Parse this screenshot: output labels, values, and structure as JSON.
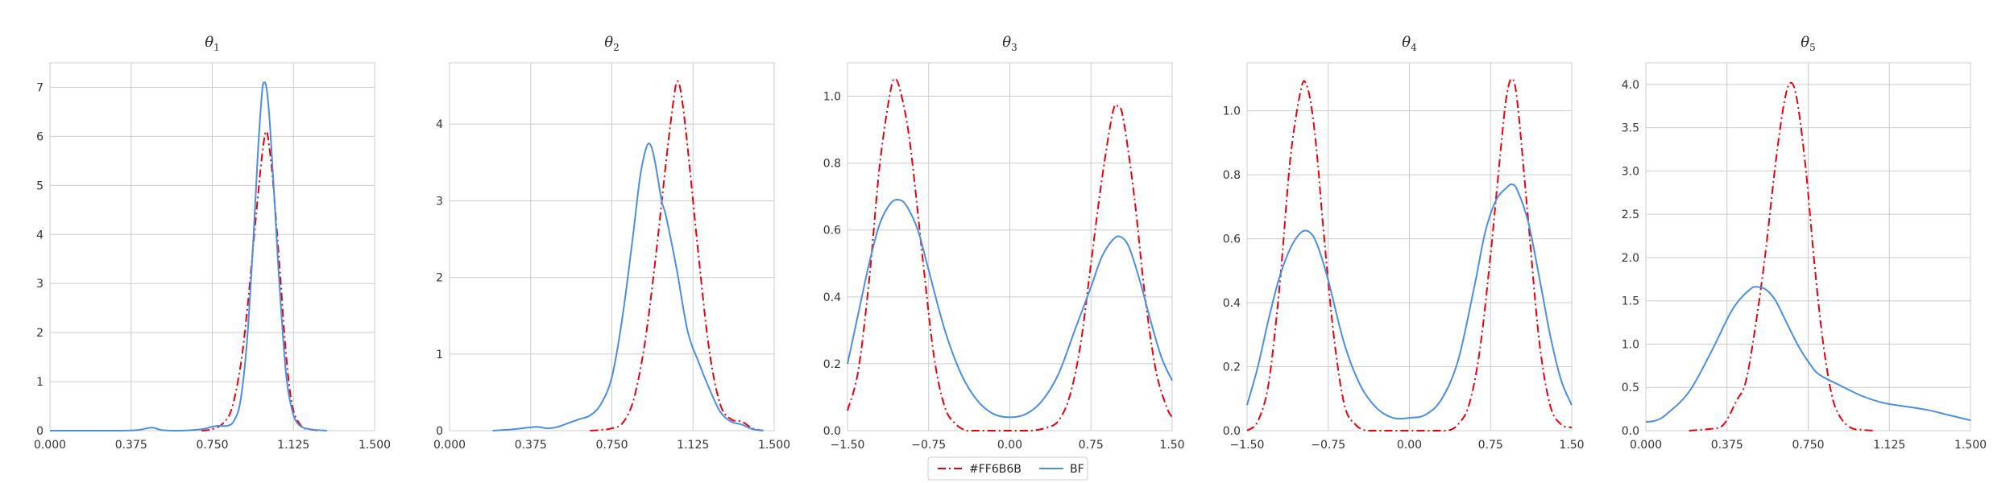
{
  "chart_data": [
    {
      "type": "line",
      "title": "θ1",
      "title_sym": "θ",
      "title_sub": "1",
      "xlim": [
        0.0,
        1.5
      ],
      "ylim": [
        0,
        7.5
      ],
      "xticks": [
        "0.000",
        "0.375",
        "0.750",
        "1.125",
        "1.500"
      ],
      "yticks": [
        "0",
        "1",
        "2",
        "3",
        "4",
        "5",
        "6",
        "7"
      ],
      "grid": true,
      "series": [
        {
          "name": "#FF6B6B",
          "x": [
            0.7,
            0.75,
            0.8,
            0.84,
            0.88,
            0.91,
            0.94,
            0.97,
            0.99,
            1.0,
            1.01,
            1.03,
            1.06,
            1.09,
            1.12,
            1.16,
            1.2,
            1.25
          ],
          "y": [
            0.0,
            0.03,
            0.15,
            0.45,
            1.3,
            2.4,
            3.8,
            5.2,
            5.95,
            6.1,
            5.9,
            5.1,
            3.4,
            1.6,
            0.5,
            0.1,
            0.03,
            0.0
          ]
        },
        {
          "name": "BF",
          "x": [
            0.0,
            0.3,
            0.4,
            0.47,
            0.52,
            0.6,
            0.7,
            0.75,
            0.78,
            0.82,
            0.85,
            0.88,
            0.91,
            0.94,
            0.96,
            0.98,
            0.99,
            1.0,
            1.01,
            1.02,
            1.04,
            1.06,
            1.09,
            1.12,
            1.15,
            1.2,
            1.28
          ],
          "y": [
            0.0,
            0.0,
            0.01,
            0.06,
            0.01,
            0.0,
            0.03,
            0.08,
            0.1,
            0.1,
            0.2,
            0.6,
            1.8,
            3.9,
            5.6,
            6.9,
            7.1,
            7.0,
            6.6,
            6.0,
            4.5,
            3.0,
            1.2,
            0.4,
            0.12,
            0.03,
            0.0
          ]
        }
      ]
    },
    {
      "type": "line",
      "title": "θ2",
      "title_sym": "θ",
      "title_sub": "2",
      "xlim": [
        0.0,
        1.5
      ],
      "ylim": [
        0,
        4.8
      ],
      "xticks": [
        "0.000",
        "0.375",
        "0.750",
        "1.125",
        "1.500"
      ],
      "yticks": [
        "0",
        "1",
        "2",
        "3",
        "4"
      ],
      "grid": true,
      "series": [
        {
          "name": "#FF6B6B",
          "x": [
            0.65,
            0.7,
            0.75,
            0.8,
            0.85,
            0.9,
            0.95,
            1.0,
            1.03,
            1.05,
            1.07,
            1.1,
            1.15,
            1.2,
            1.25,
            1.3,
            1.35,
            1.4,
            1.45
          ],
          "y": [
            0.0,
            0.01,
            0.03,
            0.1,
            0.4,
            1.1,
            2.2,
            3.5,
            4.2,
            4.55,
            4.4,
            3.7,
            2.3,
            1.05,
            0.35,
            0.15,
            0.12,
            0.03,
            0.0
          ]
        },
        {
          "name": "BF",
          "x": [
            0.2,
            0.3,
            0.4,
            0.45,
            0.5,
            0.55,
            0.6,
            0.65,
            0.7,
            0.75,
            0.8,
            0.85,
            0.88,
            0.91,
            0.93,
            0.95,
            0.98,
            1.0,
            1.05,
            1.1,
            1.15,
            1.2,
            1.25,
            1.3,
            1.35,
            1.4,
            1.45
          ],
          "y": [
            0.0,
            0.02,
            0.05,
            0.03,
            0.05,
            0.1,
            0.15,
            0.2,
            0.35,
            0.7,
            1.5,
            2.6,
            3.3,
            3.7,
            3.72,
            3.5,
            3.0,
            2.8,
            2.1,
            1.3,
            0.9,
            0.55,
            0.25,
            0.12,
            0.08,
            0.02,
            0.0
          ]
        }
      ]
    },
    {
      "type": "line",
      "title": "θ3",
      "title_sym": "θ",
      "title_sub": "3",
      "xlim": [
        -1.5,
        1.5
      ],
      "ylim": [
        0,
        1.1
      ],
      "xticks": [
        "−1.50",
        "−0.75",
        "0.00",
        "0.75",
        "1.50"
      ],
      "yticks": [
        "0.0",
        "0.2",
        "0.4",
        "0.6",
        "0.8",
        "1.0"
      ],
      "grid": true,
      "series": [
        {
          "name": "#FF6B6B",
          "x": [
            -1.5,
            -1.4,
            -1.3,
            -1.2,
            -1.1,
            -1.05,
            -1.0,
            -0.95,
            -0.9,
            -0.8,
            -0.7,
            -0.6,
            -0.5,
            -0.4,
            -0.3,
            -0.2,
            0.0,
            0.2,
            0.35,
            0.45,
            0.55,
            0.65,
            0.75,
            0.85,
            0.95,
            1.0,
            1.05,
            1.15,
            1.25,
            1.35,
            1.45,
            1.5
          ],
          "y": [
            0.06,
            0.18,
            0.45,
            0.8,
            1.02,
            1.05,
            1.0,
            0.92,
            0.8,
            0.5,
            0.22,
            0.07,
            0.02,
            0.0,
            0.0,
            0.0,
            0.0,
            0.0,
            0.01,
            0.03,
            0.1,
            0.25,
            0.5,
            0.75,
            0.95,
            0.97,
            0.93,
            0.7,
            0.4,
            0.18,
            0.07,
            0.04
          ]
        },
        {
          "name": "BF",
          "x": [
            -1.5,
            -1.4,
            -1.3,
            -1.2,
            -1.1,
            -1.02,
            -0.95,
            -0.85,
            -0.75,
            -0.6,
            -0.45,
            -0.3,
            -0.15,
            0.0,
            0.15,
            0.3,
            0.45,
            0.6,
            0.75,
            0.85,
            0.95,
            1.02,
            1.1,
            1.2,
            1.3,
            1.4,
            1.5
          ],
          "y": [
            0.2,
            0.35,
            0.5,
            0.62,
            0.68,
            0.69,
            0.67,
            0.6,
            0.48,
            0.3,
            0.17,
            0.09,
            0.05,
            0.04,
            0.05,
            0.09,
            0.17,
            0.3,
            0.43,
            0.52,
            0.57,
            0.58,
            0.55,
            0.45,
            0.33,
            0.22,
            0.15
          ]
        }
      ]
    },
    {
      "type": "line",
      "title": "θ4",
      "title_sym": "θ",
      "title_sub": "4",
      "xlim": [
        -1.5,
        1.5
      ],
      "ylim": [
        0,
        1.15
      ],
      "xticks": [
        "−1.50",
        "−0.75",
        "0.00",
        "0.75",
        "1.50"
      ],
      "yticks": [
        "0.0",
        "0.2",
        "0.4",
        "0.6",
        "0.8",
        "1.0"
      ],
      "grid": true,
      "series": [
        {
          "name": "#FF6B6B",
          "x": [
            -1.5,
            -1.4,
            -1.3,
            -1.2,
            -1.1,
            -1.0,
            -0.95,
            -0.9,
            -0.85,
            -0.8,
            -0.7,
            -0.6,
            -0.5,
            -0.4,
            -0.3,
            -0.2,
            0.0,
            0.2,
            0.35,
            0.45,
            0.55,
            0.65,
            0.75,
            0.85,
            0.9,
            0.95,
            1.0,
            1.1,
            1.2,
            1.3,
            1.4,
            1.5
          ],
          "y": [
            0.0,
            0.03,
            0.15,
            0.45,
            0.85,
            1.07,
            1.08,
            1.0,
            0.85,
            0.65,
            0.3,
            0.08,
            0.02,
            0.0,
            0.0,
            0.0,
            0.0,
            0.0,
            0.0,
            0.02,
            0.08,
            0.25,
            0.55,
            0.9,
            1.05,
            1.1,
            1.02,
            0.65,
            0.28,
            0.08,
            0.02,
            0.01
          ]
        },
        {
          "name": "BF",
          "x": [
            -1.5,
            -1.4,
            -1.3,
            -1.2,
            -1.1,
            -1.0,
            -0.92,
            -0.85,
            -0.75,
            -0.6,
            -0.45,
            -0.3,
            -0.15,
            0.0,
            0.15,
            0.3,
            0.45,
            0.6,
            0.7,
            0.8,
            0.9,
            0.95,
            1.0,
            1.1,
            1.2,
            1.3,
            1.4,
            1.5
          ],
          "y": [
            0.08,
            0.2,
            0.35,
            0.48,
            0.57,
            0.62,
            0.62,
            0.58,
            0.47,
            0.27,
            0.14,
            0.07,
            0.04,
            0.04,
            0.05,
            0.1,
            0.22,
            0.45,
            0.62,
            0.72,
            0.76,
            0.77,
            0.75,
            0.65,
            0.48,
            0.3,
            0.16,
            0.08
          ]
        }
      ]
    },
    {
      "type": "line",
      "title": "θ5",
      "title_sym": "θ",
      "title_sub": "5",
      "xlim": [
        0.0,
        1.5
      ],
      "ylim": [
        0,
        4.25
      ],
      "xticks": [
        "0.000",
        "0.375",
        "0.750",
        "1.125",
        "1.500"
      ],
      "yticks": [
        "0.0",
        "0.5",
        "1.0",
        "1.5",
        "2.0",
        "2.5",
        "3.0",
        "3.5",
        "4.0"
      ],
      "grid": true,
      "series": [
        {
          "name": "#FF6B6B",
          "x": [
            0.2,
            0.3,
            0.35,
            0.38,
            0.42,
            0.46,
            0.5,
            0.55,
            0.6,
            0.64,
            0.67,
            0.7,
            0.74,
            0.78,
            0.82,
            0.86,
            0.9,
            0.95,
            1.0,
            1.05
          ],
          "y": [
            0.0,
            0.02,
            0.05,
            0.15,
            0.35,
            0.55,
            1.1,
            2.0,
            3.1,
            3.8,
            4.02,
            3.8,
            3.0,
            1.9,
            1.0,
            0.4,
            0.15,
            0.03,
            0.01,
            0.0
          ]
        },
        {
          "name": "BF",
          "x": [
            0.0,
            0.05,
            0.1,
            0.2,
            0.3,
            0.4,
            0.48,
            0.52,
            0.56,
            0.6,
            0.65,
            0.7,
            0.75,
            0.8,
            0.9,
            1.0,
            1.1,
            1.2,
            1.3,
            1.4,
            1.5
          ],
          "y": [
            0.1,
            0.12,
            0.2,
            0.45,
            0.9,
            1.4,
            1.63,
            1.66,
            1.62,
            1.5,
            1.25,
            1.0,
            0.8,
            0.65,
            0.52,
            0.4,
            0.32,
            0.28,
            0.24,
            0.18,
            0.12
          ]
        }
      ]
    }
  ],
  "legend": {
    "placement": "bottom-center",
    "entries": [
      {
        "label": "#FF6B6B",
        "color": "#e8000b",
        "style": "dashdot"
      },
      {
        "label": "BF",
        "color": "#4b8ee6",
        "style": "solid"
      }
    ]
  },
  "colors": {
    "series_a": "#e8000b",
    "series_b": "#4b8ee6",
    "grid": "#cccccc",
    "axis": "#cccccc"
  }
}
